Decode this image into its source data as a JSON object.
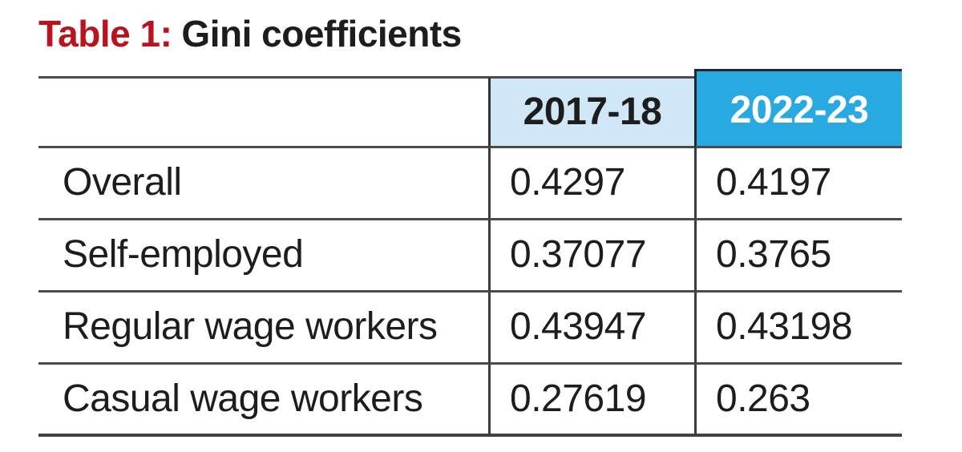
{
  "title": {
    "prefix": "Table 1:",
    "rest": "Gini coefficients"
  },
  "table": {
    "columns": [
      "",
      "2017-18",
      "2022-23"
    ],
    "rows": [
      {
        "label": "Overall",
        "values": [
          "0.4297",
          "0.4197"
        ]
      },
      {
        "label": "Self-employed",
        "values": [
          "0.37077",
          "0.3765"
        ]
      },
      {
        "label": "Regular wage workers",
        "values": [
          "0.43947",
          "0.43198"
        ]
      },
      {
        "label": "Casual wage workers",
        "values": [
          "0.27619",
          "0.263"
        ]
      }
    ]
  },
  "colors": {
    "title_accent": "#b8131f",
    "text": "#1d1d1d",
    "grid_line": "#4b4b4b",
    "header_2017_18_bg": "#cfe7f6",
    "header_2022_23_bg": "#29a9e1",
    "header_2022_23_text": "#ffffff",
    "header_2022_23_border": "#1b2730"
  },
  "chart_data": {
    "type": "table",
    "title": "Table 1: Gini coefficients",
    "columns": [
      "",
      "2017-18",
      "2022-23"
    ],
    "rows": [
      [
        "Overall",
        0.4297,
        0.4197
      ],
      [
        "Self-employed",
        0.37077,
        0.3765
      ],
      [
        "Regular wage workers",
        0.43947,
        0.43198
      ],
      [
        "Casual wage workers",
        0.27619,
        0.263
      ]
    ],
    "series": [
      {
        "name": "2017-18",
        "values": [
          0.4297,
          0.37077,
          0.43947,
          0.27619
        ]
      },
      {
        "name": "2022-23",
        "values": [
          0.4197,
          0.3765,
          0.43198,
          0.263
        ]
      }
    ],
    "categories": [
      "Overall",
      "Self-employed",
      "Regular wage workers",
      "Casual wage workers"
    ]
  }
}
